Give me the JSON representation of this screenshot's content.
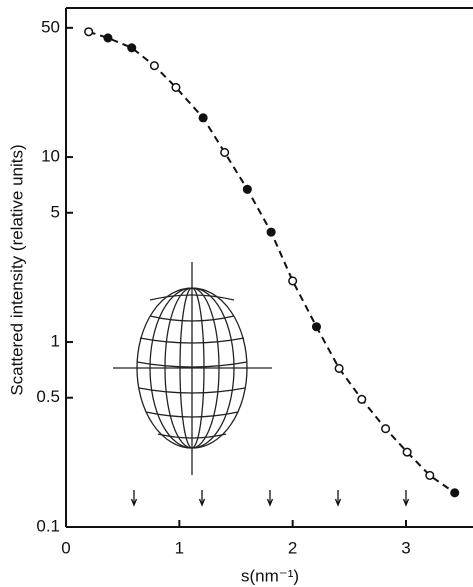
{
  "chart_data": {
    "type": "scatter",
    "xlabel": "s(nm⁻¹)",
    "ylabel": "Scattered intensity (relative units)",
    "x": [
      0.2,
      0.37,
      0.58,
      0.78,
      0.97,
      1.21,
      1.4,
      1.6,
      1.81,
      2.0,
      2.21,
      2.41,
      2.61,
      2.82,
      3.01,
      3.21,
      3.43
    ],
    "values": [
      47.6,
      44.1,
      39,
      31.2,
      23.8,
      16.3,
      10.6,
      6.7,
      3.93,
      2.14,
      1.21,
      0.72,
      0.49,
      0.34,
      0.254,
      0.19,
      0.153
    ],
    "filled": [
      false,
      true,
      true,
      false,
      false,
      true,
      false,
      true,
      true,
      false,
      true,
      false,
      false,
      false,
      false,
      false,
      true
    ],
    "arrows": [
      0.6,
      1.2,
      1.8,
      2.4,
      3.0
    ],
    "color": "#111111",
    "line_style": "dashed",
    "log_y": true,
    "xlim": [
      0,
      3.6
    ],
    "ylim": [
      0.1,
      64
    ],
    "xticks": [
      0,
      1,
      2,
      3
    ],
    "yticks": [
      0.1,
      0.5,
      1,
      5,
      10,
      50
    ]
  }
}
